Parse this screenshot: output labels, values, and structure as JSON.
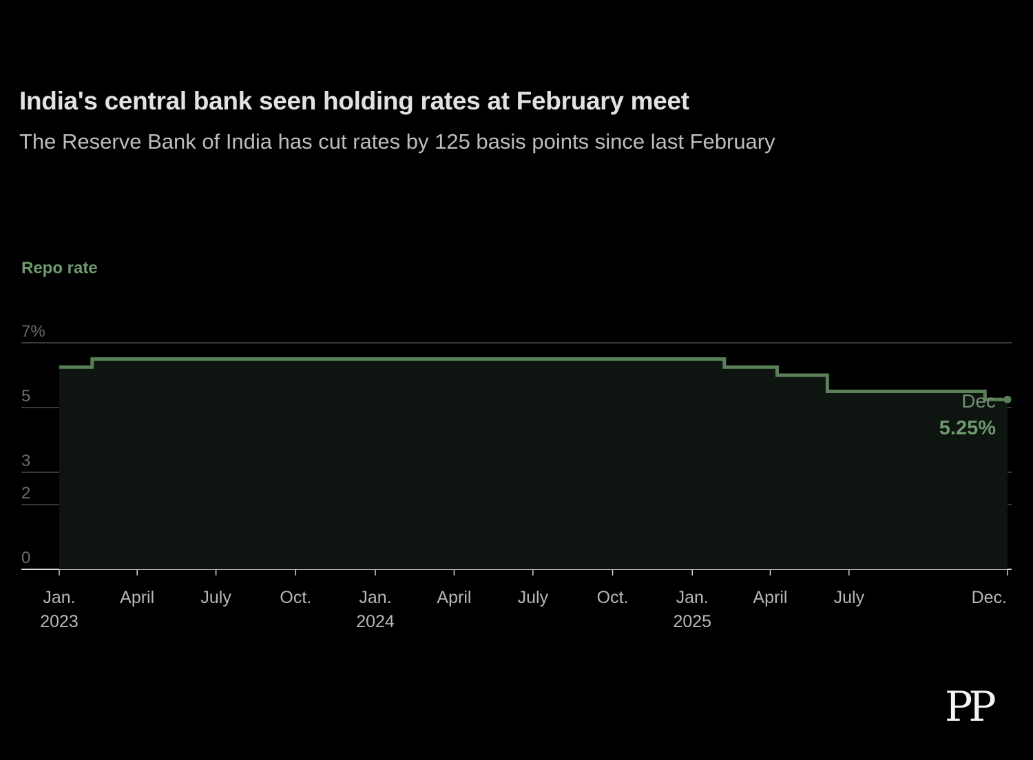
{
  "title": "India's central bank seen holding rates at February meet",
  "subtitle": "The Reserve Bank of India has cut rates by 125 basis points since last February",
  "brand_logo": "PP",
  "colors": {
    "background": "#000000",
    "line": "#5a805a",
    "area": "#0e140f",
    "label_accent": "#6f9a6f",
    "grid": "#4a4a4a",
    "tick_text": "#6c6c6c",
    "axis_text": "#b8b8b8"
  },
  "chart_data": {
    "type": "line",
    "step": true,
    "area_fill": true,
    "ylabel": "Repo rate",
    "ylim": [
      0,
      7
    ],
    "y_ticks": [
      {
        "value": 0,
        "label": "0"
      },
      {
        "value": 2,
        "label": "2"
      },
      {
        "value": 3,
        "label": "3"
      },
      {
        "value": 5,
        "label": "5"
      },
      {
        "value": 7,
        "label": "7%"
      }
    ],
    "xlim": [
      "2023-01-01",
      "2025-12-31"
    ],
    "x_ticks": [
      {
        "date": "2023-01-01",
        "label": "Jan.",
        "sublabel": "2023"
      },
      {
        "date": "2023-04-01",
        "label": "April"
      },
      {
        "date": "2023-07-01",
        "label": "July"
      },
      {
        "date": "2023-10-01",
        "label": "Oct."
      },
      {
        "date": "2024-01-01",
        "label": "Jan.",
        "sublabel": "2024"
      },
      {
        "date": "2024-04-01",
        "label": "April"
      },
      {
        "date": "2024-07-01",
        "label": "July"
      },
      {
        "date": "2024-10-01",
        "label": "Oct."
      },
      {
        "date": "2025-01-01",
        "label": "Jan.",
        "sublabel": "2025"
      },
      {
        "date": "2025-04-01",
        "label": "April"
      },
      {
        "date": "2025-07-01",
        "label": "July"
      },
      {
        "date": "2025-12-31",
        "label": "Dec."
      }
    ],
    "series": [
      {
        "points": [
          {
            "x": "2023-01-01",
            "y": 6.25
          },
          {
            "x": "2023-02-08",
            "y": 6.5
          },
          {
            "x": "2025-02-07",
            "y": 6.25
          },
          {
            "x": "2025-04-09",
            "y": 6.0
          },
          {
            "x": "2025-06-06",
            "y": 5.5
          },
          {
            "x": "2025-12-05",
            "y": 5.25
          },
          {
            "x": "2025-12-31",
            "y": 5.25
          }
        ]
      }
    ],
    "annotation": {
      "x": "2025-12-31",
      "label": "Dec",
      "value_label": "5.25%"
    },
    "grid": true
  }
}
